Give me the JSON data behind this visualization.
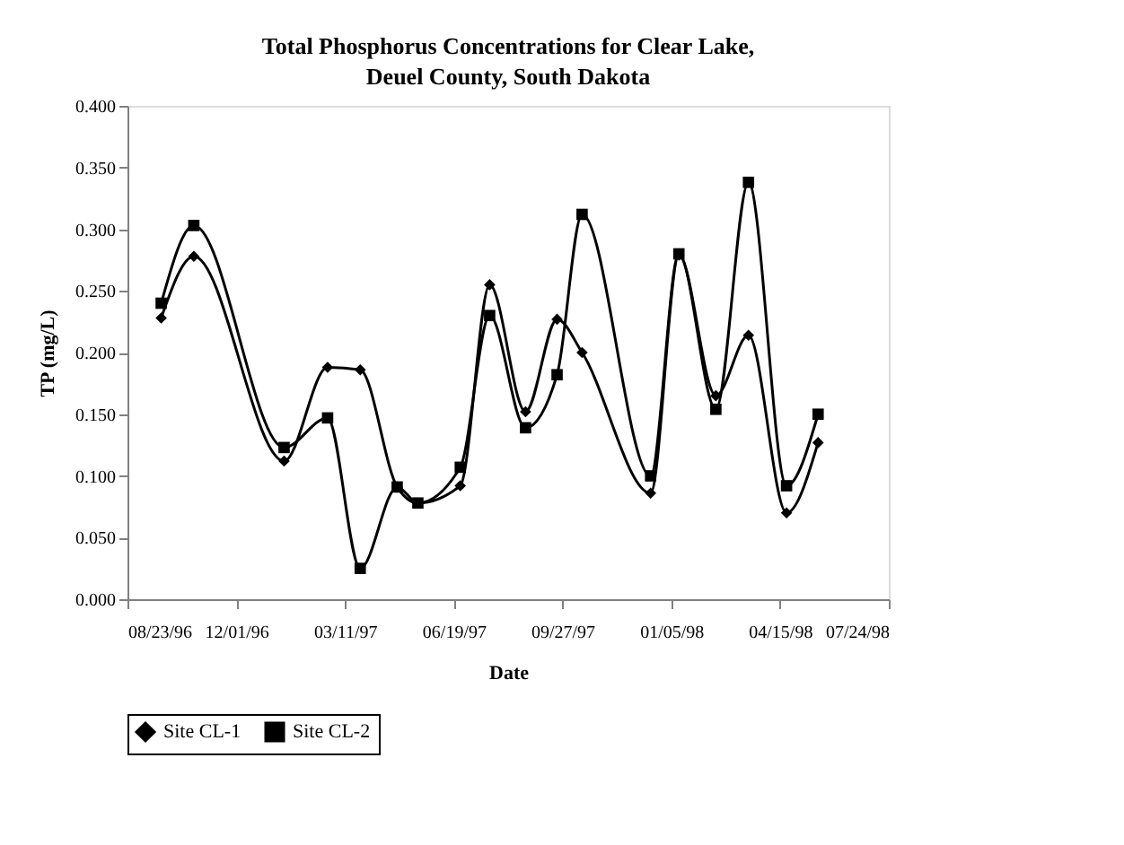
{
  "chart_data": {
    "type": "line",
    "title": "Total Phosphorus Concentrations for Clear Lake, Deuel County, South Dakota",
    "xlabel": "Date",
    "ylabel": "TP (mg/L)",
    "x": [
      "1996-09-23",
      "1996-10-23",
      "1997-01-14",
      "1997-02-23",
      "1997-03-25",
      "1997-04-28",
      "1997-05-17",
      "1997-06-25",
      "1997-07-22",
      "1997-08-24",
      "1997-09-22",
      "1997-10-15",
      "1997-12-17",
      "1998-01-12",
      "1998-02-15",
      "1998-03-17",
      "1998-04-21",
      "1998-05-20"
    ],
    "series": [
      {
        "name": "Site CL-1",
        "color": "#000000",
        "marker": "diamond",
        "values": [
          0.228,
          0.278,
          0.112,
          0.188,
          0.186,
          0.091,
          0.078,
          0.092,
          0.255,
          0.152,
          0.227,
          0.2,
          0.086,
          0.279,
          0.165,
          0.214,
          0.07,
          0.127
        ]
      },
      {
        "name": "Site CL-2",
        "color": "#000000",
        "marker": "square",
        "values": [
          0.24,
          0.303,
          0.123,
          0.147,
          0.025,
          0.091,
          0.078,
          0.107,
          0.23,
          0.139,
          0.182,
          0.312,
          0.1,
          0.28,
          0.154,
          0.338,
          0.092,
          0.15
        ]
      }
    ],
    "xlim": [
      "1996-08-23",
      "1998-07-24"
    ],
    "xticks": [
      {
        "value": "1996-08-23",
        "label": "08/23/96"
      },
      {
        "value": "1996-12-01",
        "label": "12/01/96"
      },
      {
        "value": "1997-03-11",
        "label": "03/11/97"
      },
      {
        "value": "1997-06-19",
        "label": "06/19/97"
      },
      {
        "value": "1997-09-27",
        "label": "09/27/97"
      },
      {
        "value": "1998-01-05",
        "label": "01/05/98"
      },
      {
        "value": "1998-04-15",
        "label": "04/15/98"
      },
      {
        "value": "1998-07-24",
        "label": "07/24/98"
      }
    ],
    "ylim": [
      0,
      0.4
    ],
    "yticks": [
      {
        "value": 0,
        "label": "0.000"
      },
      {
        "value": 0.05,
        "label": "0.050"
      },
      {
        "value": 0.1,
        "label": "0.100"
      },
      {
        "value": 0.15,
        "label": "0.150"
      },
      {
        "value": 0.2,
        "label": "0.200"
      },
      {
        "value": 0.25,
        "label": "0.250"
      },
      {
        "value": 0.3,
        "label": "0.300"
      },
      {
        "value": 0.35,
        "label": "0.350"
      },
      {
        "value": 0.4,
        "label": "0.400"
      }
    ],
    "grid": false,
    "legend": "bottom",
    "line_style": "solid"
  }
}
